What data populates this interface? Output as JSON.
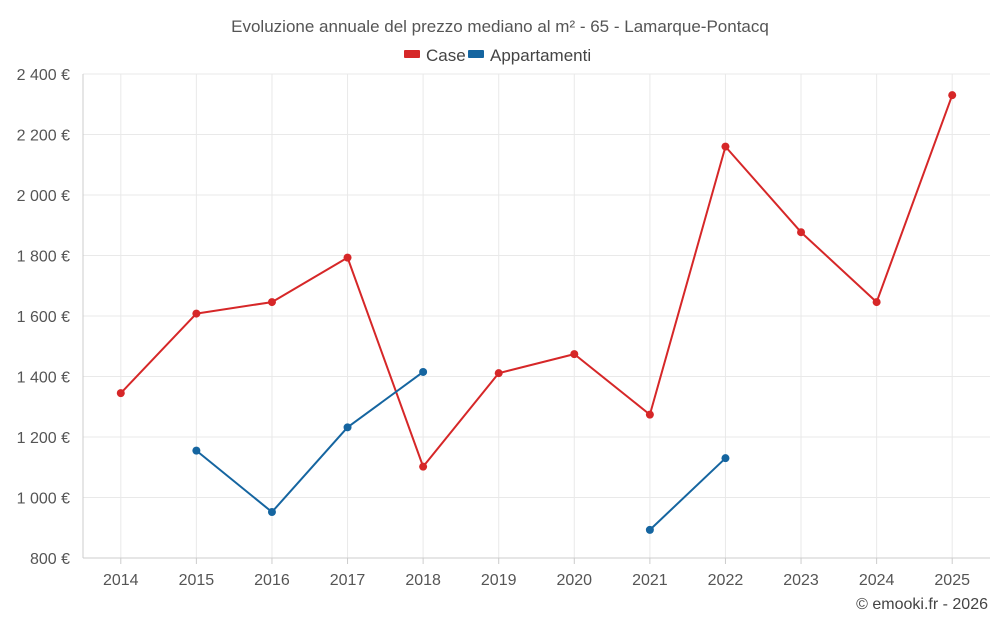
{
  "chart_data": {
    "type": "line",
    "title": "Evoluzione annuale del prezzo mediano al m² - 65 - Lamarque-Pontacq",
    "categories": [
      "2014",
      "2015",
      "2016",
      "2017",
      "2018",
      "2019",
      "2020",
      "2021",
      "2022",
      "2023",
      "2024",
      "2025"
    ],
    "series": [
      {
        "name": "Case",
        "color": "#d62728",
        "values": [
          1345,
          1608,
          1646,
          1793,
          1102,
          1411,
          1474,
          1274,
          2160,
          1877,
          1646,
          2330
        ]
      },
      {
        "name": "Appartamenti",
        "color": "#1565a0",
        "values": [
          null,
          1155,
          952,
          1232,
          1415,
          null,
          null,
          893,
          1130,
          null,
          null,
          null
        ]
      }
    ],
    "ylim": [
      800,
      2400
    ],
    "yticks": [
      800,
      1000,
      1200,
      1400,
      1600,
      1800,
      2000,
      2200,
      2400
    ],
    "ytick_labels": [
      "800 €",
      "1 000 €",
      "1 200 €",
      "1 400 €",
      "1 600 €",
      "1 800 €",
      "2 000 €",
      "2 200 €",
      "2 400 €"
    ],
    "xlabel": "",
    "ylabel": "",
    "grid": true,
    "legend_position": "top-center"
  },
  "credit": "© emooki.fr - 2026"
}
